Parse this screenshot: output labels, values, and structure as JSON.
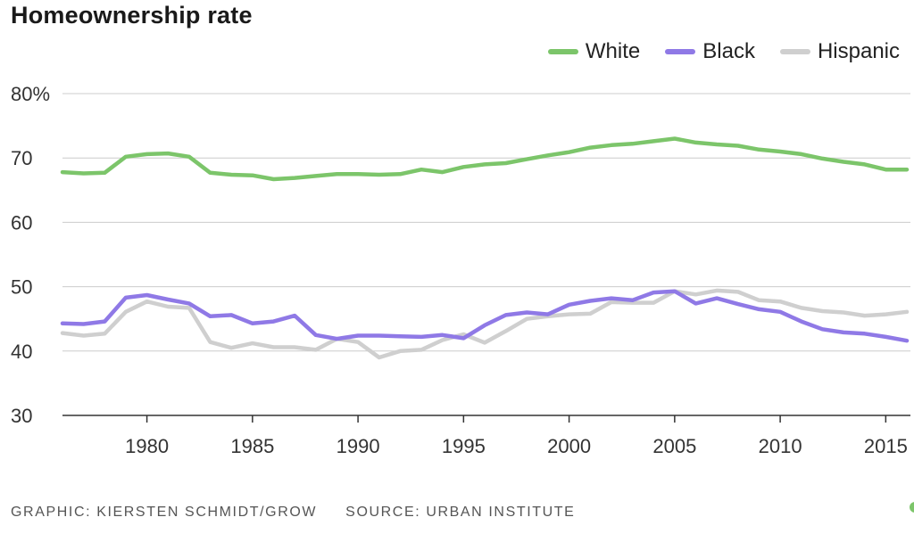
{
  "title": "Homeownership rate",
  "legend": [
    {
      "name": "White",
      "color": "#7cc56a"
    },
    {
      "name": "Black",
      "color": "#8f79e6"
    },
    {
      "name": "Hispanic",
      "color": "#cfcfcf"
    }
  ],
  "footer": {
    "graphic": "GRAPHIC: KIERSTEN SCHMIDT/GROW",
    "source": "SOURCE: URBAN INSTITUTE"
  },
  "chart_data": {
    "type": "line",
    "title": "Homeownership rate",
    "xlabel": "",
    "ylabel": "",
    "xlim": [
      1976,
      2016
    ],
    "ylim": [
      30,
      80
    ],
    "yticks": [
      30,
      40,
      50,
      60,
      70,
      80
    ],
    "ytick_labels": [
      "30",
      "40",
      "50",
      "60",
      "70",
      "80%"
    ],
    "xticks": [
      1980,
      1985,
      1990,
      1995,
      2000,
      2005,
      2010,
      2015
    ],
    "grid": true,
    "legend_position": "top-right",
    "x": [
      1976,
      1977,
      1978,
      1979,
      1980,
      1981,
      1982,
      1983,
      1984,
      1985,
      1986,
      1987,
      1988,
      1989,
      1990,
      1991,
      1992,
      1993,
      1994,
      1995,
      1996,
      1997,
      1998,
      1999,
      2000,
      2001,
      2002,
      2003,
      2004,
      2005,
      2006,
      2007,
      2008,
      2009,
      2010,
      2011,
      2012,
      2013,
      2014,
      2015,
      2016
    ],
    "series": [
      {
        "name": "White",
        "color": "#7cc56a",
        "values": [
          67.8,
          67.6,
          67.7,
          70.2,
          70.6,
          70.7,
          70.2,
          67.7,
          67.4,
          67.3,
          66.7,
          66.9,
          67.2,
          67.5,
          67.5,
          67.4,
          67.5,
          68.2,
          67.8,
          68.6,
          69.0,
          69.2,
          69.8,
          70.4,
          70.9,
          71.6,
          72.0,
          72.2,
          72.6,
          73.0,
          72.4,
          72.1,
          71.9,
          71.3,
          71.0,
          70.6,
          69.9,
          69.4,
          69.0,
          68.2,
          68.2
        ]
      },
      {
        "name": "Black",
        "color": "#8f79e6",
        "values": [
          44.3,
          44.2,
          44.6,
          48.3,
          48.7,
          48.0,
          47.4,
          45.4,
          45.6,
          44.3,
          44.6,
          45.5,
          42.5,
          41.9,
          42.4,
          42.4,
          42.3,
          42.2,
          42.5,
          42.0,
          44.0,
          45.6,
          46.0,
          45.7,
          47.2,
          47.8,
          48.2,
          47.9,
          49.1,
          49.3,
          47.4,
          48.2,
          47.3,
          46.5,
          46.1,
          44.6,
          43.4,
          42.9,
          42.7,
          42.2,
          41.6
        ]
      },
      {
        "name": "Hispanic",
        "color": "#cfcfcf",
        "values": [
          42.8,
          42.4,
          42.7,
          46.1,
          47.7,
          46.9,
          46.7,
          41.4,
          40.5,
          41.2,
          40.6,
          40.6,
          40.2,
          41.9,
          41.4,
          39.0,
          40.0,
          40.2,
          41.7,
          42.6,
          41.3,
          43.1,
          45.0,
          45.4,
          45.7,
          45.8,
          47.6,
          47.5,
          47.5,
          49.3,
          48.8,
          49.4,
          49.2,
          47.9,
          47.7,
          46.7,
          46.2,
          46.0,
          45.5,
          45.7,
          46.1
        ]
      }
    ]
  }
}
